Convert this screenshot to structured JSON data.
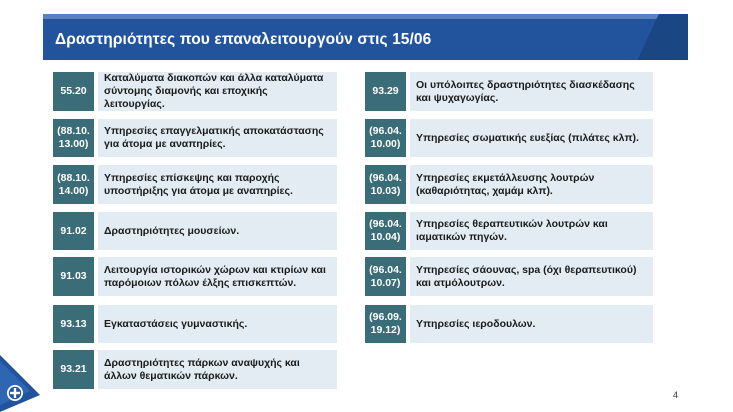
{
  "title": "Δραστηριότητες που επαναλειτουργούν στις 15/06",
  "left_items": [
    {
      "code": "55.20",
      "text": "Καταλύματα διακοπών και άλλα καταλύματα σύντομης διαμονής και εποχικής λειτουργίας."
    },
    {
      "code": "(88.10. 13.00)",
      "text": "Υπηρεσίες επαγγελματικής αποκατάστασης για άτομα με αναπηρίες."
    },
    {
      "code": "(88.10. 14.00)",
      "text": "Υπηρεσίες επίσκεψης και παροχής υποστήριξης για άτομα με αναπηρίες."
    },
    {
      "code": "91.02",
      "text": "Δραστηριότητες μουσείων."
    },
    {
      "code": "91.03",
      "text": "Λειτουργία ιστορικών χώρων και κτιρίων και παρόμοιων πόλων έλξης επισκεπτών."
    },
    {
      "code": "93.13",
      "text": "Εγκαταστάσεις γυμναστικής."
    },
    {
      "code": "93.21",
      "text": "Δραστηριότητες πάρκων αναψυχής και άλλων θεματικών πάρκων."
    }
  ],
  "right_items": [
    {
      "code": "93.29",
      "text": "Οι υπόλοιπες δραστηριότητες διασκέδασης και ψυχαγωγίας."
    },
    {
      "code": "(96.04. 10.00)",
      "text": "Υπηρεσίες σωματικής ευεξίας (πιλάτες κλπ)."
    },
    {
      "code": "(96.04. 10.03)",
      "text": "Υπηρεσίες εκμετάλλευσης λουτρών (καθαριότητας, χαμάμ κλπ)."
    },
    {
      "code": "(96.04. 10.04)",
      "text": "Υπηρεσίες θεραπευτικών λουτρών και ιαματικών πηγών."
    },
    {
      "code": "(96.04. 10.07)",
      "text": "Υπηρεσίες σάουνας, spa (όχι θεραπευτικού) και ατμόλουτρων."
    },
    {
      "code": "(96.09. 19.12)",
      "text": "Υπηρεσίες ιεροδουλων."
    }
  ],
  "page_number": "4",
  "colors": {
    "title_bg": "#21549c",
    "code_bg": "#3a6d77",
    "desc_bg": "#e2ecf2"
  }
}
